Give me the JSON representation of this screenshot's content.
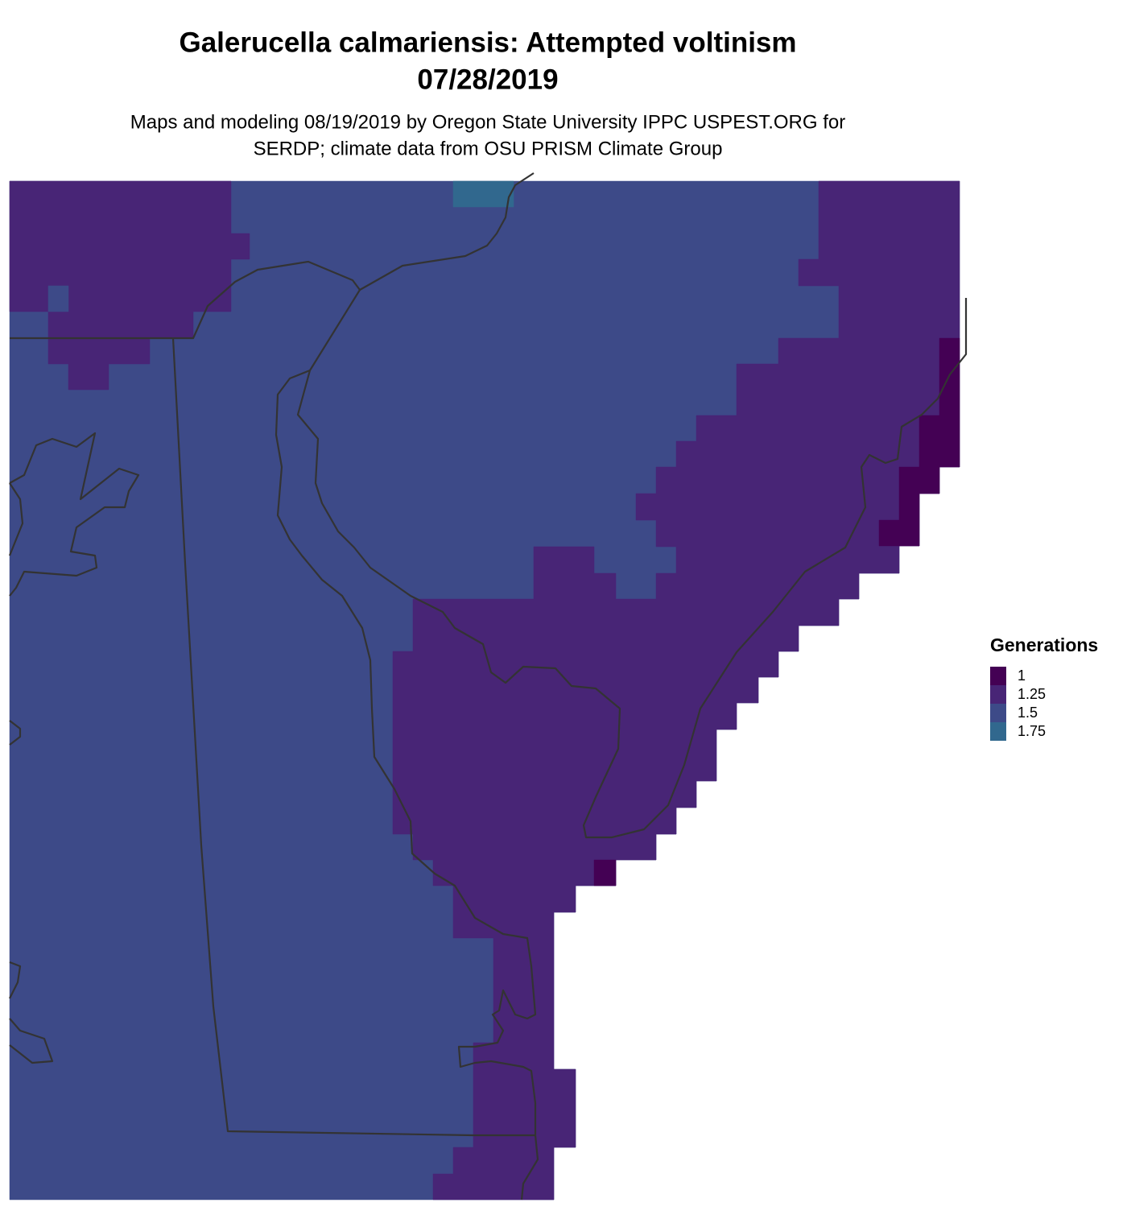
{
  "title": "Galerucella calmariensis: Attempted voltinism",
  "date": "07/28/2019",
  "subtitle": [
    "Maps and modeling 08/19/2019 by Oregon State University IPPC USPEST.ORG for",
    "SERDP; climate data from OSU PRISM Climate Group"
  ],
  "legend": {
    "title": "Generations",
    "levels": [
      1,
      1.25,
      1.5,
      1.75
    ],
    "colors": [
      "#440154",
      "#482576",
      "#3d4a88",
      "#31688e"
    ]
  }
}
